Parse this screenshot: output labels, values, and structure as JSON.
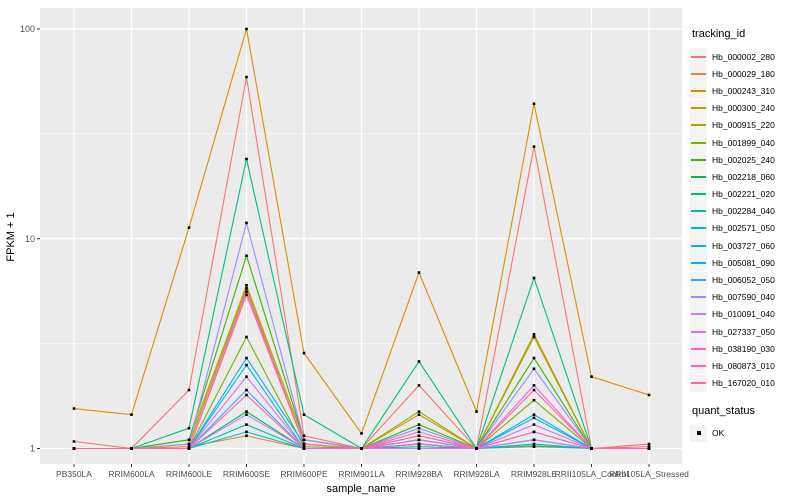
{
  "legend": {
    "tracking_title": "tracking_id",
    "quant_title": "quant_status",
    "quant_items": [
      {
        "label": "OK",
        "point_color": "#000000"
      }
    ]
  },
  "chart_data": {
    "type": "line",
    "title": "",
    "xlabel": "sample_name",
    "ylabel": "FPKM + 1",
    "y_scale": "log10",
    "ylim": [
      0.83,
      126
    ],
    "y_ticks": [
      1,
      10,
      100
    ],
    "y_tick_labels": [
      "1",
      "10",
      "100"
    ],
    "grid": "white major and minor gridlines on gray panel",
    "legend_position": "right",
    "panel_bg": "#EBEBEB",
    "point_color": "#000000",
    "point_shape": "square",
    "quant_status": "OK",
    "categories": [
      "PB350LA",
      "RRIM600LA",
      "RRIM600LE",
      "RRIM600SE",
      "RRIM600PE",
      "RRIM901LA",
      "RRIM928BA",
      "RRIM928LA",
      "RRIM928LE",
      "RRII105LA_Control",
      "RRII105LA_Stressed"
    ],
    "series": [
      {
        "name": "Hb_000002_280",
        "color": "#F8766D",
        "values": [
          1.08,
          1.0,
          1.9,
          59,
          1.15,
          1.0,
          2.0,
          1.0,
          27.5,
          1.0,
          1.05
        ]
      },
      {
        "name": "Hb_000029_180",
        "color": "#EA8331",
        "values": [
          1.0,
          1.0,
          1.02,
          1.15,
          1.0,
          1.0,
          1.05,
          1.0,
          1.02,
          1.0,
          1.0
        ]
      },
      {
        "name": "Hb_000243_310",
        "color": "#D89000",
        "values": [
          1.55,
          1.45,
          11.3,
          100,
          2.85,
          1.18,
          6.9,
          1.5,
          44,
          2.2,
          1.8
        ]
      },
      {
        "name": "Hb_000300_240",
        "color": "#C09B00",
        "values": [
          1.0,
          1.0,
          1.1,
          6.0,
          1.1,
          1.0,
          1.45,
          1.0,
          3.5,
          1.0,
          1.0
        ]
      },
      {
        "name": "Hb_000915_220",
        "color": "#A3A500",
        "values": [
          1.0,
          1.0,
          1.05,
          5.8,
          1.05,
          1.0,
          1.5,
          1.0,
          3.4,
          1.0,
          1.0
        ]
      },
      {
        "name": "Hb_001899_040",
        "color": "#7CAE00",
        "values": [
          1.0,
          1.0,
          1.0,
          3.4,
          1.02,
          1.0,
          1.15,
          1.0,
          1.7,
          1.0,
          1.0
        ]
      },
      {
        "name": "Hb_002025_240",
        "color": "#39B600",
        "values": [
          1.0,
          1.0,
          1.1,
          8.3,
          1.1,
          1.0,
          1.3,
          1.0,
          2.7,
          1.0,
          1.0
        ]
      },
      {
        "name": "Hb_002218_060",
        "color": "#00BB4E",
        "values": [
          1.0,
          1.0,
          1.0,
          1.5,
          1.0,
          1.0,
          1.05,
          1.0,
          1.1,
          1.0,
          1.0
        ]
      },
      {
        "name": "Hb_002221_020",
        "color": "#00BF7D",
        "values": [
          1.0,
          1.0,
          1.25,
          24,
          1.45,
          1.0,
          2.6,
          1.0,
          6.5,
          1.0,
          1.0
        ]
      },
      {
        "name": "Hb_002284_040",
        "color": "#00C1A3",
        "values": [
          1.0,
          1.0,
          1.0,
          1.3,
          1.0,
          1.0,
          1.02,
          1.0,
          1.05,
          1.0,
          1.0
        ]
      },
      {
        "name": "Hb_002571_050",
        "color": "#00BFC4",
        "values": [
          1.0,
          1.0,
          1.0,
          1.2,
          1.0,
          1.0,
          1.0,
          1.0,
          1.03,
          1.0,
          1.0
        ]
      },
      {
        "name": "Hb_003727_060",
        "color": "#00BAE0",
        "values": [
          1.0,
          1.0,
          1.0,
          2.5,
          1.0,
          1.0,
          1.1,
          1.0,
          1.4,
          1.0,
          1.0
        ]
      },
      {
        "name": "Hb_005081_090",
        "color": "#00B0F6",
        "values": [
          1.0,
          1.0,
          1.0,
          2.7,
          1.05,
          1.0,
          1.1,
          1.0,
          1.45,
          1.0,
          1.0
        ]
      },
      {
        "name": "Hb_006052_050",
        "color": "#35A2FF",
        "values": [
          1.0,
          1.0,
          1.0,
          1.9,
          1.0,
          1.0,
          1.05,
          1.0,
          1.2,
          1.0,
          1.0
        ]
      },
      {
        "name": "Hb_007590_040",
        "color": "#9590FF",
        "values": [
          1.0,
          1.0,
          1.05,
          11.9,
          1.1,
          1.0,
          1.25,
          1.0,
          2.4,
          1.0,
          1.0
        ]
      },
      {
        "name": "Hb_010091_040",
        "color": "#C77CFF",
        "values": [
          1.0,
          1.0,
          1.0,
          1.45,
          1.0,
          1.0,
          1.0,
          1.0,
          1.1,
          1.0,
          1.0
        ]
      },
      {
        "name": "Hb_027337_050",
        "color": "#E76BF3",
        "values": [
          1.0,
          1.0,
          1.0,
          2.2,
          1.0,
          1.0,
          1.1,
          1.0,
          1.3,
          1.0,
          1.0
        ]
      },
      {
        "name": "Hb_038190_030",
        "color": "#FA62DB",
        "values": [
          1.0,
          1.0,
          1.0,
          5.6,
          1.05,
          1.0,
          1.2,
          1.0,
          2.0,
          1.0,
          1.0
        ]
      },
      {
        "name": "Hb_080873_010",
        "color": "#FF62BC",
        "values": [
          1.0,
          1.0,
          1.0,
          1.8,
          1.0,
          1.0,
          1.05,
          1.0,
          1.2,
          1.0,
          1.0
        ]
      },
      {
        "name": "Hb_167020_010",
        "color": "#FF6A98",
        "values": [
          1.0,
          1.0,
          1.0,
          5.4,
          1.05,
          1.0,
          1.15,
          1.0,
          1.9,
          1.0,
          1.02
        ]
      }
    ]
  }
}
